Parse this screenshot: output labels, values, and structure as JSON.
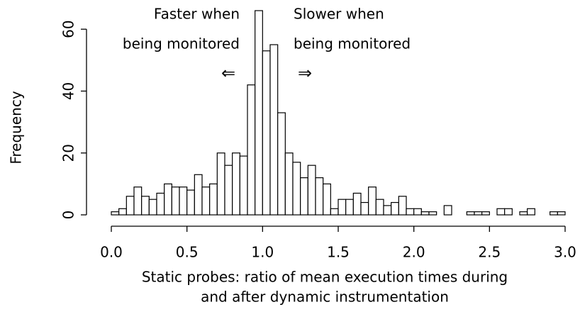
{
  "chart_data": {
    "type": "histogram",
    "xlabel": [
      "Static probes: ratio of mean execution times during",
      "and after dynamic instrumentation"
    ],
    "ylabel": "Frequency",
    "annotations": [
      "Faster when",
      "being monitored",
      "⇐",
      "Slower when",
      "being monitored",
      "⇒"
    ],
    "bins": [
      0,
      0.05,
      0.1,
      0.15,
      0.2,
      0.25,
      0.3,
      0.35,
      0.4,
      0.45,
      0.5,
      0.55,
      0.6,
      0.65,
      0.7,
      0.75,
      0.8,
      0.85,
      0.9,
      0.95,
      1,
      1.05,
      1.1,
      1.15,
      1.2,
      1.25,
      1.3,
      1.35,
      1.4,
      1.45,
      1.5,
      1.55,
      1.6,
      1.65,
      1.7,
      1.75,
      1.8,
      1.85,
      1.9,
      1.95,
      2,
      2.05,
      2.1,
      2.15,
      2.2,
      2.25,
      2.3,
      2.35,
      2.4,
      2.45,
      2.5,
      2.55,
      2.6,
      2.65,
      2.7,
      2.75,
      2.8,
      2.85,
      2.9,
      2.95,
      3
    ],
    "values": [
      1,
      2,
      6,
      9,
      6,
      5,
      7,
      10,
      9,
      9,
      8,
      13,
      9,
      10,
      20,
      16,
      20,
      19,
      42,
      66,
      53,
      55,
      33,
      20,
      17,
      12,
      16,
      12,
      10,
      2,
      5,
      5,
      7,
      4,
      9,
      5,
      3,
      4,
      6,
      2,
      2,
      1,
      1,
      0,
      3,
      0,
      0,
      1,
      1,
      1,
      0,
      2,
      2,
      0,
      1,
      2,
      0,
      0,
      1,
      1
    ],
    "color": "#ffffff",
    "xlim": [
      0,
      3
    ],
    "ylim": [
      0,
      66
    ],
    "xticks": [
      {
        "value": 0,
        "label": "0.0"
      },
      0.5,
      {
        "value": 1,
        "label": "1.0"
      },
      1.5,
      {
        "value": 2,
        "label": "2.0"
      },
      2.5,
      {
        "value": 3,
        "label": "3.0"
      }
    ],
    "yticks": [
      0,
      20,
      40,
      60
    ],
    "grid": false
  }
}
